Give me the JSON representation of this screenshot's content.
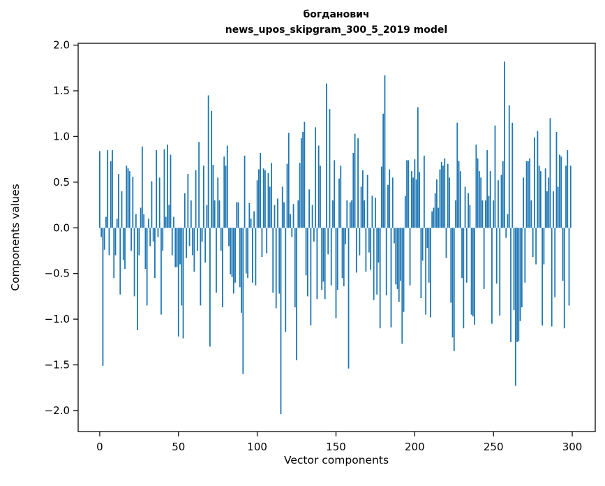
{
  "figure": {
    "title_line1": "богданович",
    "title_line2": "news_upos_skipgram_300_5_2019 model"
  },
  "chart_data": {
    "type": "bar",
    "title": "богданович\nnews_upos_skipgram_300_5_2019 model",
    "xlabel": "Vector components",
    "ylabel": "Components values",
    "bar_color": "#1f77b4",
    "axis_color": "#1a1a1a",
    "grid": false,
    "legend_position": "none",
    "n_components": 300,
    "xticks": [
      0,
      50,
      100,
      150,
      200,
      250,
      300
    ],
    "yticks": [
      2.0,
      1.5,
      1.0,
      0.5,
      0.0,
      -0.5,
      -1.0,
      -1.5,
      -2.0
    ],
    "ytick_labels": [
      "2.0",
      "1.5",
      "1.0",
      "0.5",
      "0.0",
      "−0.5",
      "−1.0",
      "−1.5",
      "−2.0"
    ],
    "xlim": [
      -13.7,
      314.6
    ],
    "ylim": [
      -2.23,
      2.02
    ],
    "values": [
      0.84,
      -0.1,
      -1.51,
      -0.24,
      0.12,
      0.85,
      -0.3,
      0.73,
      0.85,
      -0.55,
      -0.3,
      0.1,
      0.59,
      -0.73,
      0.4,
      -0.35,
      -0.45,
      0.68,
      0.65,
      0.62,
      -0.25,
      0.56,
      -0.75,
      0.15,
      -1.12,
      -0.3,
      0.22,
      0.89,
      0.15,
      -0.45,
      -0.85,
      0.1,
      -0.2,
      0.51,
      -0.15,
      -0.55,
      0.85,
      -0.1,
      0.55,
      -0.95,
      -0.25,
      0.86,
      0.12,
      0.91,
      0.25,
      0.8,
      -0.3,
      0.12,
      -0.43,
      -0.43,
      -1.19,
      -0.4,
      -0.85,
      -1.21,
      0.38,
      -0.33,
      0.59,
      -0.2,
      0.3,
      -0.3,
      -0.48,
      0.63,
      -0.25,
      0.94,
      -0.85,
      -0.15,
      0.68,
      -0.38,
      0.25,
      1.45,
      -1.3,
      1.28,
      0.69,
      0.3,
      -0.71,
      0.55,
      0.3,
      -0.25,
      -0.87,
      0.78,
      0.68,
      0.9,
      -0.2,
      -0.51,
      -0.54,
      -0.72,
      -0.6,
      0.28,
      0.28,
      -0.65,
      -0.93,
      -1.6,
      0.79,
      -0.5,
      -0.55,
      0.27,
      0.1,
      -0.6,
      0.18,
      -0.63,
      0.52,
      0.64,
      0.82,
      -0.32,
      0.65,
      0.63,
      -0.28,
      0.6,
      0.45,
      0.71,
      -0.71,
      0.25,
      -0.88,
      0.32,
      -0.72,
      -2.04,
      0.45,
      0.28,
      -1.14,
      0.7,
      1.04,
      0.15,
      -0.1,
      0.26,
      -0.87,
      -1.45,
      0.3,
      0.71,
      0.98,
      1.05,
      1.16,
      -0.52,
      -0.75,
      0.42,
      -1.07,
      0.25,
      -0.15,
      1.1,
      -0.78,
      0.9,
      0.68,
      -0.68,
      -0.59,
      -0.78,
      1.58,
      -0.29,
      1.3,
      -0.63,
      0.3,
      0.74,
      -0.99,
      -0.68,
      0.54,
      0.68,
      -0.55,
      -0.64,
      -0.18,
      0.3,
      -1.54,
      0.28,
      0.3,
      0.82,
      1.03,
      -0.49,
      0.98,
      -0.3,
      0.45,
      0.63,
      0.3,
      -0.48,
      0.58,
      -0.27,
      -0.46,
      0.35,
      -0.79,
      0.33,
      -0.73,
      -0.38,
      -1.1,
      0.67,
      1.25,
      1.67,
      -0.74,
      0.47,
      0.64,
      -1.09,
      0.55,
      -0.17,
      -0.62,
      -0.67,
      -0.81,
      -0.58,
      -1.27,
      -0.92,
      0.35,
      0.74,
      0.74,
      -0.63,
      0.62,
      0.55,
      0.75,
      0.53,
      1.32,
      0.61,
      -0.77,
      -0.36,
      0.79,
      -0.95,
      -0.22,
      -0.6,
      -0.98,
      0.18,
      0.22,
      0.38,
      0.53,
      0.22,
      0.64,
      0.72,
      0.68,
      0.76,
      -0.33,
      0.7,
      0.55,
      -0.82,
      -1.2,
      -1.35,
      0.3,
      1.15,
      0.73,
      0.62,
      -0.55,
      -1.1,
      0.45,
      -0.6,
      0.38,
      0.25,
      -0.95,
      -0.97,
      -1.06,
      0.91,
      0.76,
      0.62,
      0.55,
      0.3,
      -0.67,
      0.3,
      0.85,
      0.35,
      0.62,
      -1.05,
      0.3,
      1.12,
      -0.61,
      0.52,
      -0.96,
      0.58,
      0.73,
      1.82,
      -0.11,
      0.15,
      1.34,
      -1.25,
      1.15,
      -0.9,
      -1.73,
      -1.25,
      -1.24,
      -1.02,
      -0.87,
      0.55,
      -0.6,
      0.73,
      0.73,
      0.76,
      0.3,
      -0.32,
      0.99,
      -0.4,
      1.06,
      0.68,
      0.62,
      -1.07,
      -0.4,
      0.65,
      0.4,
      0.55,
      1.2,
      -1.08,
      0.4,
      -0.76,
      1.05,
      0.45,
      0.8,
      0.78,
      -0.58,
      -1.1,
      0.68,
      0.85,
      -0.85,
      0.68
    ]
  }
}
